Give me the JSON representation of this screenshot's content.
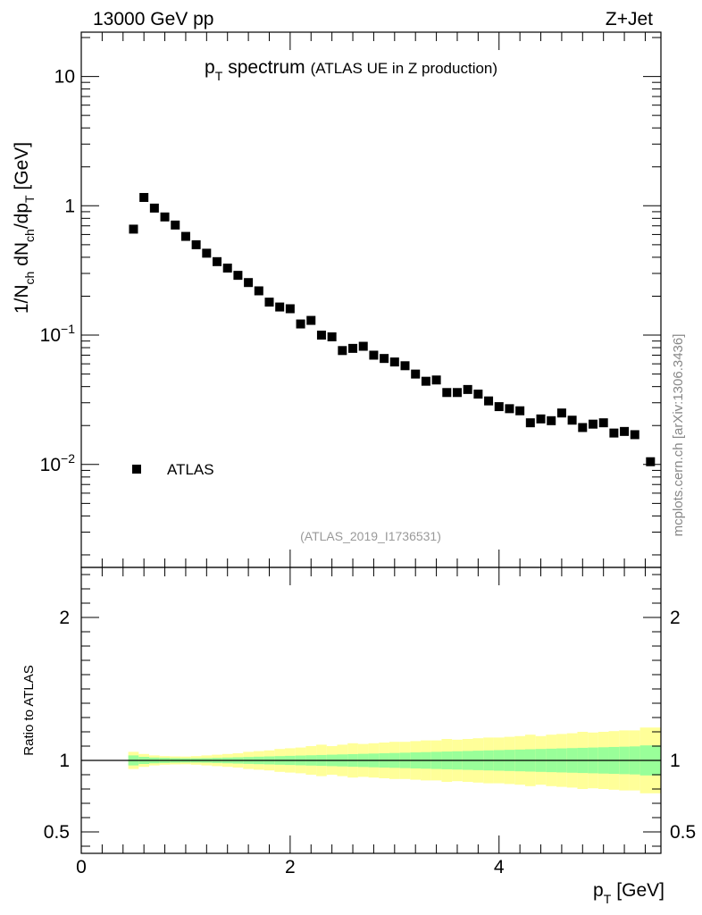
{
  "header": {
    "left": "13000 GeV pp",
    "right": "Z+Jet"
  },
  "chart_data": [
    {
      "type": "scatter",
      "title_main": "p",
      "title_sub": "T",
      "title_word": "spectrum",
      "title_extra": "(ATLAS UE in Z production)",
      "ylabel_parts": [
        "1/N",
        "ch",
        " dN",
        "ch",
        "/dp",
        "T",
        " [GeV]"
      ],
      "yscale": "log",
      "ylim": [
        0.0016,
        22
      ],
      "xlim": [
        0,
        5.55
      ],
      "y_ticks": [
        {
          "value": 10,
          "label": "10"
        },
        {
          "value": 1,
          "label": "1"
        },
        {
          "value": 0.1,
          "base": "10",
          "exp": "−1"
        },
        {
          "value": 0.01,
          "base": "10",
          "exp": "−2"
        }
      ],
      "legend": {
        "label": "ATLAS",
        "position": "left"
      },
      "watermark": "(ATLAS_2019_I1736531)",
      "side_label": "mcplots.cern.ch [arXiv:1306.3436]",
      "series": [
        {
          "name": "ATLAS",
          "x": [
            0.5,
            0.6,
            0.7,
            0.8,
            0.9,
            1.0,
            1.1,
            1.2,
            1.3,
            1.4,
            1.5,
            1.6,
            1.7,
            1.8,
            1.9,
            2.0,
            2.1,
            2.2,
            2.3,
            2.4,
            2.5,
            2.6,
            2.7,
            2.8,
            2.9,
            3.0,
            3.1,
            3.2,
            3.3,
            3.4,
            3.5,
            3.6,
            3.7,
            3.8,
            3.9,
            4.0,
            4.1,
            4.2,
            4.3,
            4.4,
            4.5,
            4.6,
            4.7,
            4.8,
            4.9,
            5.0,
            5.1,
            5.2,
            5.3,
            5.45
          ],
          "y": [
            0.66,
            1.16,
            0.96,
            0.82,
            0.71,
            0.58,
            0.5,
            0.43,
            0.37,
            0.33,
            0.29,
            0.255,
            0.22,
            0.18,
            0.165,
            0.16,
            0.122,
            0.13,
            0.1,
            0.097,
            0.076,
            0.079,
            0.082,
            0.07,
            0.066,
            0.062,
            0.058,
            0.05,
            0.044,
            0.045,
            0.036,
            0.036,
            0.038,
            0.035,
            0.031,
            0.028,
            0.027,
            0.026,
            0.021,
            0.0225,
            0.0218,
            0.025,
            0.022,
            0.0193,
            0.0205,
            0.021,
            0.0175,
            0.018,
            0.017,
            0.0105
          ]
        }
      ]
    },
    {
      "type": "area",
      "ylabel": "Ratio to ATLAS",
      "ylim": [
        0.35,
        2.35
      ],
      "xlim": [
        0,
        5.55
      ],
      "xlabel_main": "p",
      "xlabel_sub": "T",
      "xlabel_unit": "[GeV]",
      "x_ticks": [
        {
          "value": 0,
          "label": "0"
        },
        {
          "value": 2,
          "label": "2"
        },
        {
          "value": 4,
          "label": "4"
        }
      ],
      "y_ticks": [
        {
          "value": 2,
          "label": "2"
        },
        {
          "value": 1,
          "label": "1"
        },
        {
          "value": 0.5,
          "label": "0.5"
        }
      ],
      "reference_line": 1,
      "bin_edges": [
        0.45,
        0.55,
        0.65,
        0.75,
        0.85,
        0.95,
        1.05,
        1.15,
        1.25,
        1.35,
        1.45,
        1.55,
        1.65,
        1.75,
        1.85,
        1.95,
        2.05,
        2.15,
        2.25,
        2.35,
        2.45,
        2.55,
        2.65,
        2.75,
        2.85,
        2.95,
        3.05,
        3.15,
        3.25,
        3.35,
        3.45,
        3.55,
        3.65,
        3.75,
        3.85,
        3.95,
        4.05,
        4.15,
        4.25,
        4.35,
        4.45,
        4.55,
        4.65,
        4.75,
        4.85,
        4.95,
        5.05,
        5.15,
        5.25,
        5.35,
        5.55
      ],
      "band_stat": [
        0.035,
        0.025,
        0.02,
        0.018,
        0.016,
        0.015,
        0.015,
        0.016,
        0.018,
        0.02,
        0.022,
        0.024,
        0.026,
        0.028,
        0.03,
        0.032,
        0.034,
        0.036,
        0.038,
        0.04,
        0.042,
        0.044,
        0.046,
        0.048,
        0.05,
        0.052,
        0.054,
        0.056,
        0.058,
        0.06,
        0.062,
        0.064,
        0.066,
        0.068,
        0.07,
        0.072,
        0.074,
        0.076,
        0.078,
        0.08,
        0.082,
        0.084,
        0.086,
        0.088,
        0.09,
        0.092,
        0.094,
        0.096,
        0.098,
        0.105
      ],
      "band_total": [
        0.06,
        0.045,
        0.035,
        0.03,
        0.028,
        0.027,
        0.03,
        0.035,
        0.04,
        0.045,
        0.05,
        0.06,
        0.065,
        0.07,
        0.08,
        0.085,
        0.09,
        0.1,
        0.11,
        0.1,
        0.11,
        0.12,
        0.115,
        0.12,
        0.125,
        0.13,
        0.13,
        0.135,
        0.14,
        0.14,
        0.15,
        0.145,
        0.15,
        0.155,
        0.16,
        0.16,
        0.165,
        0.17,
        0.18,
        0.17,
        0.18,
        0.185,
        0.19,
        0.2,
        0.195,
        0.2,
        0.205,
        0.21,
        0.21,
        0.23
      ],
      "colors": {
        "total": "#ffff99",
        "stat": "#99ff99",
        "line": "#000000",
        "marker": "#000000",
        "watermark": "#999999"
      }
    }
  ]
}
